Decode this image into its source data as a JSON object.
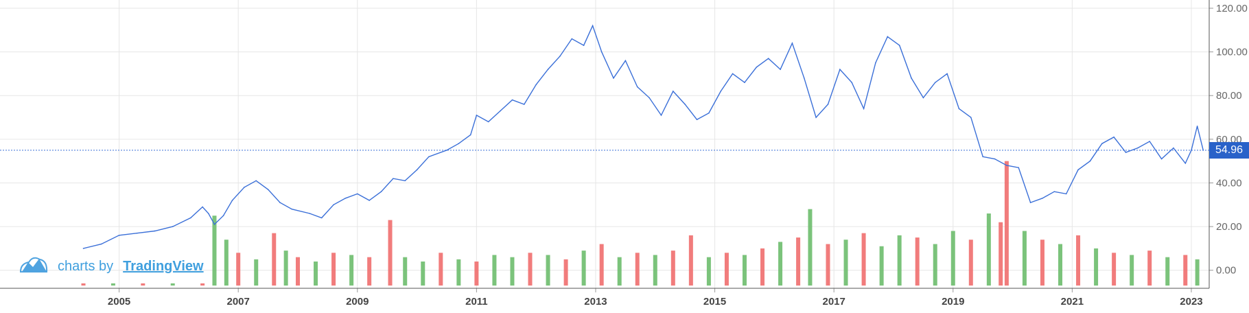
{
  "watermark": {
    "prefix": "charts by",
    "brand": "TradingView",
    "icon": "tradingview-cloud-icon"
  },
  "current_price_label": "54.96",
  "colors": {
    "line": "#3a6fd8",
    "grid": "#e6e6e6",
    "axis_text": "#666666",
    "price_tag_bg": "#2962c9",
    "volume_up": "#6dbd6d",
    "volume_down": "#f06e6e"
  },
  "chart_data": {
    "type": "line",
    "title": "",
    "xlabel": "",
    "ylabel": "",
    "ylim": [
      -7,
      120
    ],
    "yticks": [
      "120.00",
      "100.00",
      "80.00",
      "60.00",
      "40.00",
      "20.00",
      "0.00"
    ],
    "xticks": [
      "2005",
      "2007",
      "2009",
      "2011",
      "2013",
      "2015",
      "2017",
      "2019",
      "2021",
      "2023"
    ],
    "xlim": [
      2003.0,
      2023.3
    ],
    "grid": true,
    "current_price": 54.96,
    "series": [
      {
        "x": [
          2004.4,
          2004.7,
          2005.0,
          2005.3,
          2005.6,
          2005.9,
          2006.2,
          2006.4,
          2006.5,
          2006.6,
          2006.75,
          2006.9,
          2007.1,
          2007.3,
          2007.5,
          2007.7,
          2007.9,
          2008.2,
          2008.4,
          2008.6,
          2008.8,
          2009.0,
          2009.2,
          2009.4,
          2009.6,
          2009.8,
          2010.0,
          2010.2,
          2010.5,
          2010.7,
          2010.9,
          2011.0,
          2011.2,
          2011.4,
          2011.6,
          2011.8,
          2012.0,
          2012.2,
          2012.4,
          2012.6,
          2012.8,
          2012.95,
          2013.1,
          2013.3,
          2013.5,
          2013.7,
          2013.9,
          2014.1,
          2014.3,
          2014.5,
          2014.7,
          2014.9,
          2015.1,
          2015.3,
          2015.5,
          2015.7,
          2015.9,
          2016.1,
          2016.3,
          2016.5,
          2016.7,
          2016.9,
          2017.1,
          2017.3,
          2017.5,
          2017.7,
          2017.9,
          2018.1,
          2018.3,
          2018.5,
          2018.7,
          2018.9,
          2019.1,
          2019.3,
          2019.5,
          2019.7,
          2019.9,
          2020.1,
          2020.3,
          2020.5,
          2020.7,
          2020.9,
          2021.1,
          2021.3,
          2021.5,
          2021.7,
          2021.9,
          2022.1,
          2022.3,
          2022.5,
          2022.7,
          2022.9,
          2023.0,
          2023.1,
          2023.2
        ],
        "values": [
          10,
          12,
          16,
          17,
          18,
          20,
          24,
          29,
          26,
          21,
          25,
          32,
          38,
          41,
          37,
          31,
          28,
          26,
          24,
          30,
          33,
          35,
          32,
          36,
          42,
          41,
          46,
          52,
          55,
          58,
          62,
          71,
          68,
          73,
          78,
          76,
          85,
          92,
          98,
          106,
          103,
          112,
          100,
          88,
          96,
          84,
          79,
          71,
          82,
          76,
          69,
          72,
          82,
          90,
          86,
          93,
          97,
          92,
          104,
          88,
          70,
          76,
          92,
          86,
          74,
          95,
          107,
          103,
          88,
          79,
          86,
          90,
          74,
          70,
          52,
          51,
          48,
          47,
          31,
          33,
          36,
          35,
          46,
          50,
          58,
          61,
          54,
          56,
          59,
          51,
          56,
          49,
          55,
          66,
          54.96
        ]
      }
    ],
    "volume": {
      "ylim": [
        -7,
        120
      ],
      "x": [
        2004.4,
        2004.9,
        2005.4,
        2005.9,
        2006.4,
        2006.6,
        2006.8,
        2007.0,
        2007.3,
        2007.6,
        2007.8,
        2008.0,
        2008.3,
        2008.6,
        2008.9,
        2009.2,
        2009.55,
        2009.8,
        2010.1,
        2010.4,
        2010.7,
        2011.0,
        2011.3,
        2011.6,
        2011.9,
        2012.2,
        2012.5,
        2012.8,
        2013.1,
        2013.4,
        2013.7,
        2014.0,
        2014.3,
        2014.6,
        2014.9,
        2015.2,
        2015.5,
        2015.8,
        2016.1,
        2016.4,
        2016.6,
        2016.9,
        2017.2,
        2017.5,
        2017.8,
        2018.1,
        2018.4,
        2018.7,
        2019.0,
        2019.3,
        2019.6,
        2019.8,
        2019.9,
        2020.2,
        2020.5,
        2020.8,
        2021.1,
        2021.4,
        2021.7,
        2022.0,
        2022.3,
        2022.6,
        2022.9,
        2023.1
      ],
      "values": [
        -6,
        -6,
        -6,
        -6,
        -6,
        25,
        14,
        8,
        5,
        17,
        9,
        6,
        4,
        8,
        7,
        6,
        23,
        6,
        4,
        8,
        5,
        4,
        7,
        6,
        8,
        7,
        5,
        9,
        12,
        6,
        8,
        7,
        9,
        16,
        6,
        8,
        7,
        10,
        13,
        15,
        28,
        12,
        14,
        17,
        11,
        16,
        15,
        12,
        18,
        14,
        26,
        22,
        50,
        18,
        14,
        12,
        16,
        10,
        8,
        7,
        9,
        6,
        7,
        5
      ],
      "up": [
        false,
        true,
        false,
        true,
        false,
        true,
        true,
        false,
        true,
        false,
        true,
        false,
        true,
        false,
        true,
        false,
        false,
        true,
        true,
        false,
        true,
        false,
        true,
        true,
        false,
        true,
        false,
        true,
        false,
        true,
        false,
        true,
        false,
        false,
        true,
        false,
        true,
        false,
        true,
        false,
        true,
        false,
        true,
        false,
        true,
        true,
        false,
        true,
        true,
        false,
        true,
        false,
        false,
        true,
        false,
        true,
        false,
        true,
        false,
        true,
        false,
        true,
        false,
        true
      ]
    }
  }
}
